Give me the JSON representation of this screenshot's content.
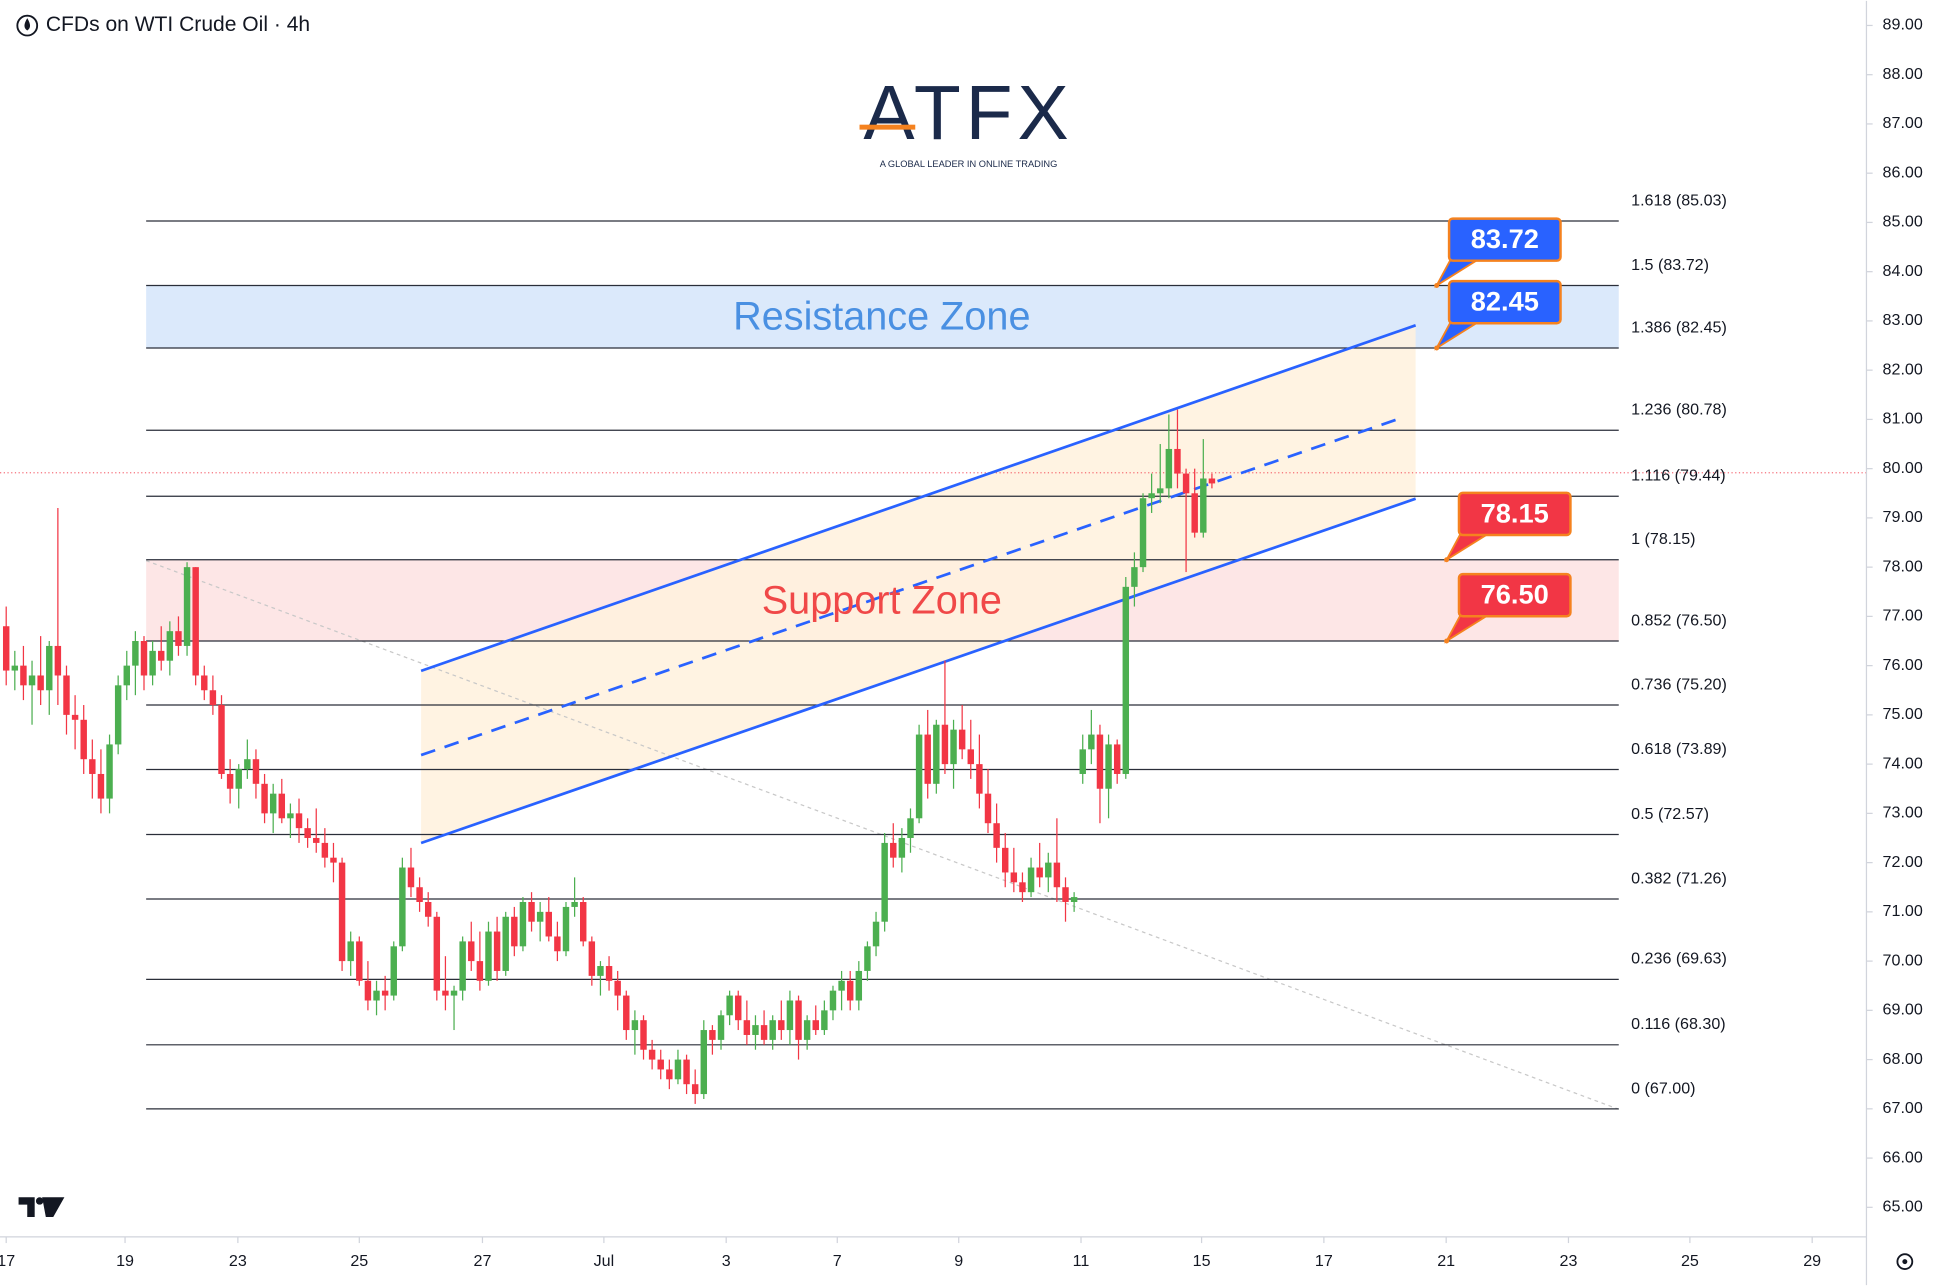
{
  "logo": {
    "name": "ATFX",
    "tagline": "A GLOBAL LEADER IN ONLINE TRADING"
  },
  "chart_data": {
    "type": "candlestick",
    "title": "CFDs on WTI Crude Oil · 4h",
    "up_color": "#4caf50",
    "down_color": "#f23645",
    "xlim": [
      -0.72,
      216
    ],
    "ylim": [
      64.4,
      89.5
    ],
    "xticks": [
      {
        "value": 0,
        "label": "17"
      },
      {
        "value": 13.8,
        "label": "19"
      },
      {
        "value": 26.9,
        "label": "23"
      },
      {
        "value": 41,
        "label": "25"
      },
      {
        "value": 55.3,
        "label": "27"
      },
      {
        "value": 69.4,
        "label": "Jul"
      },
      {
        "value": 83.6,
        "label": "3"
      },
      {
        "value": 96.5,
        "label": "7"
      },
      {
        "value": 110.6,
        "label": "9"
      },
      {
        "value": 124.8,
        "label": "11"
      },
      {
        "value": 138.8,
        "label": "15"
      },
      {
        "value": 153,
        "label": "17"
      },
      {
        "value": 167.2,
        "label": "21"
      },
      {
        "value": 181.4,
        "label": "23"
      },
      {
        "value": 195.5,
        "label": "25"
      },
      {
        "value": 209.7,
        "label": "29"
      }
    ],
    "yticks": [
      {
        "value": 65,
        "label": "65.00"
      },
      {
        "value": 66,
        "label": "66.00"
      },
      {
        "value": 67,
        "label": "67.00"
      },
      {
        "value": 68,
        "label": "68.00"
      },
      {
        "value": 69,
        "label": "69.00"
      },
      {
        "value": 70,
        "label": "70.00"
      },
      {
        "value": 71,
        "label": "71.00"
      },
      {
        "value": 72,
        "label": "72.00"
      },
      {
        "value": 73,
        "label": "73.00"
      },
      {
        "value": 74,
        "label": "74.00"
      },
      {
        "value": 75,
        "label": "75.00"
      },
      {
        "value": 76,
        "label": "76.00"
      },
      {
        "value": 77,
        "label": "77.00"
      },
      {
        "value": 78,
        "label": "78.00"
      },
      {
        "value": 79,
        "label": "79.00"
      },
      {
        "value": 80,
        "label": "80.00"
      },
      {
        "value": 81,
        "label": "81.00"
      },
      {
        "value": 82,
        "label": "82.00"
      },
      {
        "value": 83,
        "label": "83.00"
      },
      {
        "value": 84,
        "label": "84.00"
      },
      {
        "value": 85,
        "label": "85.00"
      },
      {
        "value": 86,
        "label": "86.00"
      },
      {
        "value": 87,
        "label": "87.00"
      },
      {
        "value": 88,
        "label": "88.00"
      },
      {
        "value": 89,
        "label": "89.00"
      }
    ],
    "fib_levels": [
      {
        "value": 85.03,
        "label": "1.618 (85.03)"
      },
      {
        "value": 83.72,
        "label": "1.5 (83.72)"
      },
      {
        "value": 82.45,
        "label": "1.386 (82.45)"
      },
      {
        "value": 80.78,
        "label": "1.236 (80.78)"
      },
      {
        "value": 79.44,
        "label": "1.116 (79.44)"
      },
      {
        "value": 78.15,
        "label": "1 (78.15)"
      },
      {
        "value": 76.5,
        "label": "0.852 (76.50)"
      },
      {
        "value": 75.2,
        "label": "0.736 (75.20)"
      },
      {
        "value": 73.89,
        "label": "0.618 (73.89)"
      },
      {
        "value": 72.57,
        "label": "0.5 (72.57)"
      },
      {
        "value": 71.26,
        "label": "0.382 (71.26)"
      },
      {
        "value": 69.63,
        "label": "0.236 (69.63)"
      },
      {
        "value": 68.3,
        "label": "0.116 (68.30)"
      },
      {
        "value": 67,
        "label": "0 (67.00)"
      }
    ],
    "zones": [
      {
        "label": "Resistance Zone",
        "range": [
          82.45,
          83.72
        ],
        "color": "#4a90e2",
        "fill": "#dbe9fb"
      },
      {
        "label": "Support Zone",
        "range": [
          76.5,
          78.15
        ],
        "color": "#f04848",
        "fill": "#fde6e6"
      }
    ],
    "callouts": {
      "values": [
        83.72,
        82.45,
        78.15,
        76.5
      ],
      "value_labels": [
        "83.72",
        "82.45",
        "78.15",
        "76.50"
      ],
      "colors": [
        "#2962ff",
        "#2962ff",
        "#f23645",
        "#f23645"
      ]
    },
    "candles": [
      [
        76.8,
        77.2,
        75.6,
        75.9
      ],
      [
        75.9,
        76.3,
        75.5,
        76.0
      ],
      [
        76.0,
        76.4,
        75.3,
        75.6
      ],
      [
        75.6,
        76.1,
        74.8,
        75.8
      ],
      [
        75.8,
        76.6,
        75.2,
        75.5
      ],
      [
        75.5,
        76.5,
        75.0,
        76.4
      ],
      [
        76.4,
        79.2,
        75.2,
        75.8
      ],
      [
        75.8,
        76.0,
        74.6,
        75.0
      ],
      [
        75.0,
        75.4,
        74.3,
        74.9
      ],
      [
        74.9,
        75.2,
        73.8,
        74.1
      ],
      [
        74.1,
        74.5,
        73.3,
        73.8
      ],
      [
        73.8,
        74.3,
        73.0,
        73.3
      ],
      [
        73.3,
        74.6,
        73.0,
        74.4
      ],
      [
        74.4,
        75.8,
        74.2,
        75.6
      ],
      [
        75.6,
        76.3,
        75.3,
        76.0
      ],
      [
        76.0,
        76.7,
        75.4,
        76.5
      ],
      [
        76.5,
        76.6,
        75.5,
        75.8
      ],
      [
        75.8,
        76.5,
        75.6,
        76.3
      ],
      [
        76.3,
        76.8,
        75.9,
        76.1
      ],
      [
        76.1,
        76.9,
        75.8,
        76.7
      ],
      [
        76.7,
        77.0,
        76.2,
        76.4
      ],
      [
        76.4,
        78.1,
        76.2,
        78.0
      ],
      [
        78.0,
        78.0,
        75.6,
        75.8
      ],
      [
        75.8,
        76.0,
        75.3,
        75.5
      ],
      [
        75.5,
        75.8,
        75.0,
        75.2
      ],
      [
        75.2,
        75.4,
        73.7,
        73.8
      ],
      [
        73.8,
        74.1,
        73.2,
        73.5
      ],
      [
        73.5,
        74.0,
        73.1,
        73.9
      ],
      [
        73.9,
        74.5,
        73.7,
        74.1
      ],
      [
        74.1,
        74.3,
        73.3,
        73.6
      ],
      [
        73.6,
        73.8,
        72.8,
        73.0
      ],
      [
        73.0,
        73.6,
        72.6,
        73.4
      ],
      [
        73.4,
        73.7,
        72.8,
        72.9
      ],
      [
        72.9,
        73.2,
        72.5,
        73.0
      ],
      [
        73.0,
        73.3,
        72.4,
        72.7
      ],
      [
        72.7,
        72.9,
        72.3,
        72.5
      ],
      [
        72.5,
        73.1,
        72.2,
        72.4
      ],
      [
        72.4,
        72.7,
        71.9,
        72.1
      ],
      [
        72.1,
        72.4,
        71.6,
        72.0
      ],
      [
        72.0,
        72.1,
        69.8,
        70.0
      ],
      [
        70.0,
        70.6,
        69.7,
        70.4
      ],
      [
        70.4,
        70.5,
        69.5,
        69.6
      ],
      [
        69.6,
        70.0,
        69.0,
        69.2
      ],
      [
        69.2,
        69.6,
        68.9,
        69.4
      ],
      [
        69.4,
        69.7,
        69.0,
        69.3
      ],
      [
        69.3,
        70.4,
        69.2,
        70.3
      ],
      [
        70.3,
        72.1,
        70.2,
        71.9
      ],
      [
        71.9,
        72.3,
        71.3,
        71.5
      ],
      [
        71.5,
        71.7,
        71.0,
        71.2
      ],
      [
        71.2,
        71.4,
        70.7,
        70.9
      ],
      [
        70.9,
        71.0,
        69.2,
        69.4
      ],
      [
        69.4,
        70.1,
        69.0,
        69.3
      ],
      [
        69.3,
        69.5,
        68.6,
        69.4
      ],
      [
        69.4,
        70.5,
        69.2,
        70.4
      ],
      [
        70.4,
        70.8,
        69.8,
        70.0
      ],
      [
        70.0,
        70.6,
        69.4,
        69.6
      ],
      [
        69.6,
        70.8,
        69.5,
        70.6
      ],
      [
        70.6,
        70.9,
        69.6,
        69.8
      ],
      [
        69.8,
        71.0,
        69.7,
        70.9
      ],
      [
        70.9,
        71.1,
        70.1,
        70.3
      ],
      [
        70.3,
        71.3,
        70.2,
        71.2
      ],
      [
        71.2,
        71.4,
        70.6,
        70.8
      ],
      [
        70.8,
        71.2,
        70.4,
        71.0
      ],
      [
        71.0,
        71.3,
        70.4,
        70.5
      ],
      [
        70.5,
        70.8,
        70.0,
        70.2
      ],
      [
        70.2,
        71.2,
        70.1,
        71.1
      ],
      [
        71.1,
        71.7,
        70.9,
        71.2
      ],
      [
        71.2,
        71.3,
        70.3,
        70.4
      ],
      [
        70.4,
        70.5,
        69.5,
        69.7
      ],
      [
        69.7,
        70.0,
        69.3,
        69.9
      ],
      [
        69.9,
        70.1,
        69.4,
        69.6
      ],
      [
        69.6,
        69.8,
        69.0,
        69.3
      ],
      [
        69.3,
        69.4,
        68.4,
        68.6
      ],
      [
        68.6,
        69.0,
        68.1,
        68.8
      ],
      [
        68.8,
        68.9,
        68.0,
        68.2
      ],
      [
        68.2,
        68.4,
        67.8,
        68.0
      ],
      [
        68.0,
        68.2,
        67.6,
        67.8
      ],
      [
        67.8,
        68.0,
        67.4,
        67.6
      ],
      [
        67.6,
        68.2,
        67.5,
        68.0
      ],
      [
        68.0,
        68.1,
        67.3,
        67.5
      ],
      [
        67.5,
        67.8,
        67.1,
        67.3
      ],
      [
        67.3,
        68.8,
        67.2,
        68.6
      ],
      [
        68.6,
        68.7,
        68.1,
        68.4
      ],
      [
        68.4,
        69.0,
        68.2,
        68.9
      ],
      [
        68.9,
        69.4,
        68.7,
        69.3
      ],
      [
        69.3,
        69.4,
        68.6,
        68.8
      ],
      [
        68.8,
        69.2,
        68.3,
        68.5
      ],
      [
        68.5,
        68.9,
        68.2,
        68.7
      ],
      [
        68.7,
        69.0,
        68.3,
        68.4
      ],
      [
        68.4,
        68.9,
        68.2,
        68.8
      ],
      [
        68.8,
        69.2,
        68.4,
        68.6
      ],
      [
        68.6,
        69.4,
        68.3,
        69.2
      ],
      [
        69.2,
        69.3,
        68.0,
        68.4
      ],
      [
        68.4,
        68.9,
        68.2,
        68.8
      ],
      [
        68.8,
        69.1,
        68.5,
        68.6
      ],
      [
        68.6,
        69.2,
        68.5,
        69.0
      ],
      [
        69.0,
        69.5,
        68.8,
        69.4
      ],
      [
        69.4,
        69.8,
        69.0,
        69.6
      ],
      [
        69.6,
        69.8,
        69.0,
        69.2
      ],
      [
        69.2,
        70.0,
        69.0,
        69.8
      ],
      [
        69.8,
        70.4,
        69.6,
        70.3
      ],
      [
        70.3,
        71.0,
        70.1,
        70.8
      ],
      [
        70.8,
        72.6,
        70.6,
        72.4
      ],
      [
        72.4,
        72.8,
        71.9,
        72.1
      ],
      [
        72.1,
        72.7,
        71.8,
        72.5
      ],
      [
        72.5,
        73.1,
        72.2,
        72.9
      ],
      [
        72.9,
        74.8,
        72.8,
        74.6
      ],
      [
        74.6,
        75.1,
        73.3,
        73.6
      ],
      [
        73.6,
        74.9,
        73.4,
        74.8
      ],
      [
        74.8,
        76.1,
        73.8,
        74.0
      ],
      [
        74.0,
        74.9,
        73.5,
        74.7
      ],
      [
        74.7,
        75.2,
        74.1,
        74.3
      ],
      [
        74.3,
        74.9,
        73.7,
        74.0
      ],
      [
        74.0,
        74.6,
        73.1,
        73.4
      ],
      [
        73.4,
        73.9,
        72.6,
        72.8
      ],
      [
        72.8,
        73.2,
        72.0,
        72.3
      ],
      [
        72.3,
        72.6,
        71.5,
        71.8
      ],
      [
        71.8,
        72.3,
        71.4,
        71.6
      ],
      [
        71.6,
        71.8,
        71.2,
        71.4
      ],
      [
        71.4,
        72.1,
        71.3,
        71.9
      ],
      [
        71.9,
        72.4,
        71.5,
        71.7
      ],
      [
        71.7,
        72.2,
        71.4,
        72.0
      ],
      [
        72.0,
        72.9,
        71.2,
        71.5
      ],
      [
        71.5,
        71.7,
        70.8,
        71.2
      ],
      [
        71.2,
        71.4,
        71.0,
        71.3
      ],
      [
        73.8,
        74.6,
        73.6,
        74.3
      ],
      [
        74.3,
        75.1,
        74.0,
        74.6
      ],
      [
        74.6,
        74.8,
        72.8,
        73.5
      ],
      [
        73.5,
        74.6,
        72.9,
        74.4
      ],
      [
        74.4,
        74.5,
        73.6,
        73.8
      ],
      [
        73.8,
        77.8,
        73.7,
        77.6
      ],
      [
        77.6,
        78.3,
        77.2,
        78.0
      ],
      [
        78.0,
        79.5,
        77.9,
        79.4
      ],
      [
        79.4,
        79.9,
        79.1,
        79.5
      ],
      [
        79.5,
        80.5,
        79.3,
        79.6
      ],
      [
        79.6,
        81.1,
        79.4,
        80.4
      ],
      [
        80.4,
        81.2,
        79.6,
        79.9
      ],
      [
        79.9,
        80.0,
        77.9,
        79.5
      ],
      [
        79.5,
        80.0,
        78.6,
        78.7
      ],
      [
        78.7,
        80.6,
        78.6,
        79.8
      ],
      [
        79.8,
        79.9,
        79.6,
        79.7
      ]
    ]
  }
}
